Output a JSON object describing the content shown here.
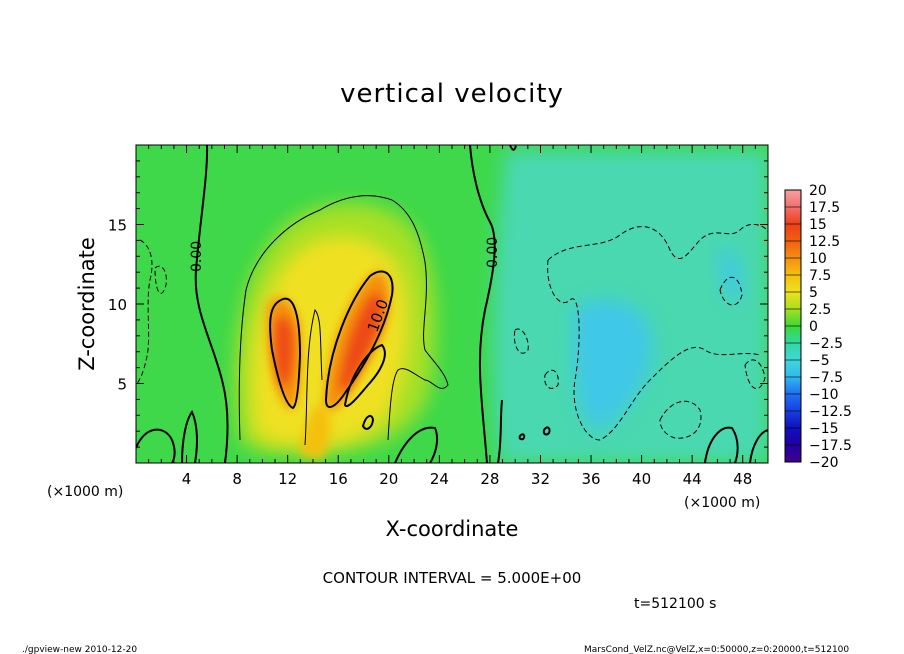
{
  "chart_data": {
    "type": "heatmap",
    "title": "vertical velocity",
    "xlabel": "X-coordinate",
    "ylabel": "Z-coordinate",
    "x_unit_left": "(×1000 m)",
    "x_unit_right": "(×1000 m)",
    "xlim": [
      0,
      50
    ],
    "ylim": [
      0,
      20
    ],
    "x_ticks": [
      "4",
      "8",
      "12",
      "16",
      "20",
      "24",
      "28",
      "32",
      "36",
      "40",
      "44",
      "48"
    ],
    "y_ticks": [
      "5",
      "10",
      "15"
    ],
    "colorbar": {
      "labels": [
        "20",
        "17.5",
        "15",
        "12.5",
        "10",
        "7.5",
        "5",
        "2.5",
        "0",
        "−2.5",
        "−5",
        "−7.5",
        "−10",
        "−12.5",
        "−15",
        "−17.5",
        "−20"
      ],
      "colors": [
        "#f6a0a0",
        "#f27070",
        "#ee4018",
        "#f06010",
        "#f49010",
        "#f4c010",
        "#f0e020",
        "#a6e020",
        "#3cd838",
        "#30d8a0",
        "#40d8d8",
        "#30b8f0",
        "#2070f0",
        "#1840e0",
        "#1010c0",
        "#300090"
      ]
    },
    "contour_labels": [
      {
        "text": "0.00",
        "x": 4.6,
        "z": 13.2
      },
      {
        "text": "10.0",
        "x": 19.3,
        "z": 9.4
      },
      {
        "text": "0.00",
        "x": 28.2,
        "z": 13.2
      }
    ],
    "contour_interval_text": "CONTOUR INTERVAL = 5.000E+00",
    "time_text": "t=512100 s"
  },
  "footer": {
    "left": "./gpview-new  2010-12-20",
    "right": "MarsCond_VelZ.nc@VelZ,x=0:50000,z=0:20000,t=512100"
  }
}
